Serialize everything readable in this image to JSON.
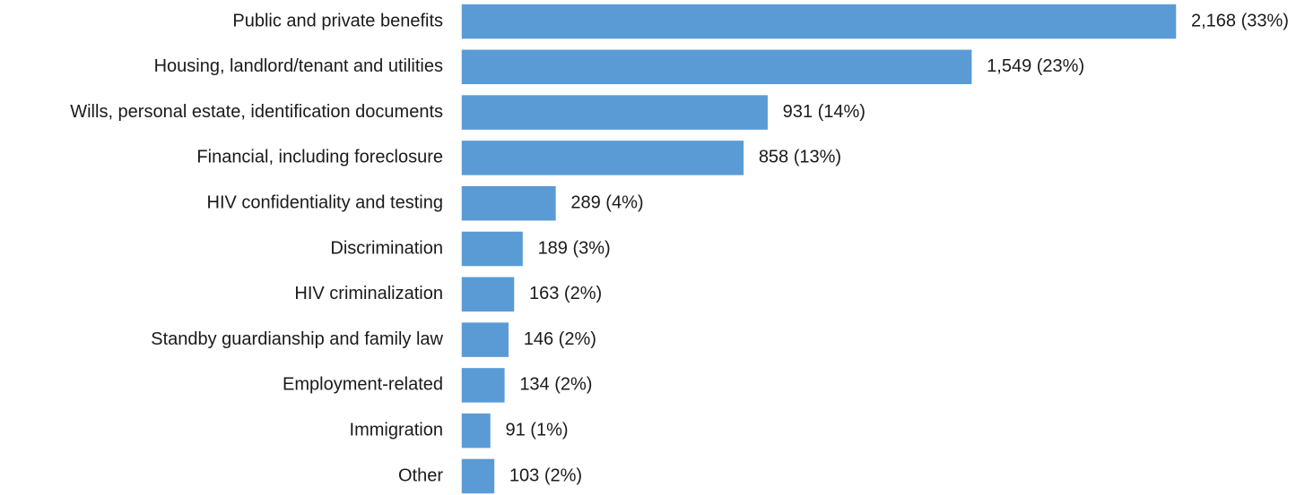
{
  "chart_data": {
    "type": "bar",
    "orientation": "horizontal",
    "categories": [
      "Public and private benefits",
      "Housing, landlord/tenant and utilities",
      "Wills, personal estate, identification documents",
      "Financial, including foreclosure",
      "HIV confidentiality and testing",
      "Discrimination",
      "HIV criminalization",
      "Standby guardianship and family law",
      "Employment-related",
      "Immigration",
      "Other"
    ],
    "values": [
      2168,
      1549,
      931,
      858,
      289,
      189,
      163,
      146,
      134,
      91,
      103
    ],
    "data_labels": [
      "2,168 (33%)",
      "1,549 (23%)",
      "931 (14%)",
      "858 (13%)",
      "289 (4%)",
      "189 (3%)",
      "163 (2%)",
      "146 (2%)",
      "134 (2%)",
      "91 (1%)",
      "103 (2%)"
    ],
    "title": "",
    "xlabel": "",
    "ylabel": "",
    "xlim": [
      0,
      2168
    ],
    "grid": false,
    "legend": "none",
    "bar_color": "#5b9bd5"
  }
}
